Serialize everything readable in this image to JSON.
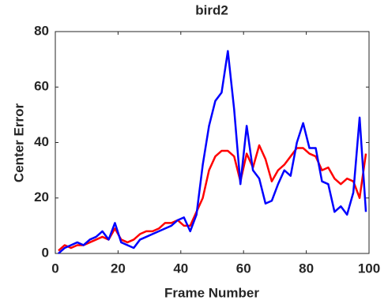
{
  "chart_data": {
    "type": "line",
    "title": "bird2",
    "x_label": "Frame Number",
    "y_label": "Center Error",
    "x": [
      1,
      3,
      5,
      7,
      9,
      11,
      13,
      15,
      17,
      19,
      21,
      23,
      25,
      27,
      29,
      31,
      33,
      35,
      37,
      39,
      41,
      43,
      45,
      47,
      49,
      51,
      53,
      55,
      57,
      59,
      61,
      63,
      65,
      67,
      69,
      71,
      73,
      75,
      77,
      79,
      81,
      83,
      85,
      87,
      89,
      91,
      93,
      95,
      97,
      99
    ],
    "series": [
      {
        "color": "#ff0000",
        "values": [
          1,
          3,
          2,
          3,
          3,
          4,
          5,
          6,
          5,
          9,
          5,
          4,
          5,
          7,
          8,
          8,
          9,
          11,
          11,
          12,
          10,
          10,
          15,
          20,
          30,
          35,
          37,
          37,
          35,
          26,
          36,
          31,
          39,
          34,
          26,
          30,
          32,
          35,
          38,
          38,
          36,
          35,
          30,
          31,
          27,
          25,
          27,
          26,
          20,
          36
        ]
      },
      {
        "color": "#0000ff",
        "values": [
          0,
          2,
          3,
          4,
          3,
          5,
          6,
          8,
          5,
          11,
          4,
          3,
          2,
          5,
          6,
          7,
          8,
          9,
          10,
          12,
          13,
          8,
          14,
          32,
          46,
          55,
          58,
          73,
          52,
          25,
          46,
          30,
          27,
          18,
          19,
          25,
          30,
          28,
          40,
          47,
          38,
          38,
          26,
          25,
          15,
          17,
          14,
          22,
          49,
          15
        ]
      }
    ],
    "xlim": [
      0,
      100
    ],
    "ylim": [
      0,
      80
    ],
    "xticks": [
      0,
      20,
      40,
      60,
      80,
      100
    ],
    "yticks": [
      0,
      20,
      40,
      60,
      80
    ]
  }
}
